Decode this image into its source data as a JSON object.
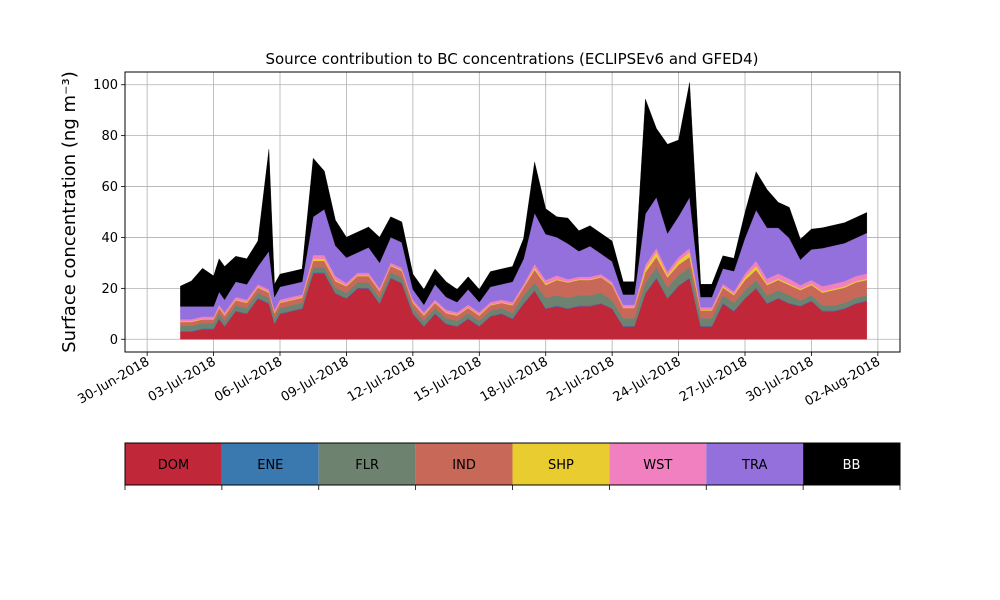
{
  "chart_data": {
    "type": "area",
    "title": "Source contribution to BC concentrations (ECLIPSEv6 and GFED4)",
    "ylabel": "Surface concentration (ng m⁻³)",
    "xlabel": "",
    "xlim": [
      "2018-06-29",
      "2018-08-03"
    ],
    "ylim": [
      -5,
      105
    ],
    "yticks": [
      0,
      20,
      40,
      60,
      80,
      100
    ],
    "grid": true,
    "stacked": true,
    "xtick_labels": [
      {
        "date": "2018-06-30",
        "label": "30-Jun-2018"
      },
      {
        "date": "2018-07-03",
        "label": "03-Jul-2018"
      },
      {
        "date": "2018-07-06",
        "label": "06-Jul-2018"
      },
      {
        "date": "2018-07-09",
        "label": "09-Jul-2018"
      },
      {
        "date": "2018-07-12",
        "label": "12-Jul-2018"
      },
      {
        "date": "2018-07-15",
        "label": "15-Jul-2018"
      },
      {
        "date": "2018-07-18",
        "label": "18-Jul-2018"
      },
      {
        "date": "2018-07-21",
        "label": "21-Jul-2018"
      },
      {
        "date": "2018-07-24",
        "label": "24-Jul-2018"
      },
      {
        "date": "2018-07-27",
        "label": "27-Jul-2018"
      },
      {
        "date": "2018-07-30",
        "label": "30-Jul-2018"
      },
      {
        "date": "2018-08-02",
        "label": "02-Aug-2018"
      }
    ],
    "x": [
      "2018-07-01 12:00",
      "2018-07-02 00:00",
      "2018-07-02 12:00",
      "2018-07-03 00:00",
      "2018-07-03 06:00",
      "2018-07-03 12:00",
      "2018-07-04 00:00",
      "2018-07-04 12:00",
      "2018-07-05 00:00",
      "2018-07-05 12:00",
      "2018-07-05 18:00",
      "2018-07-06 00:00",
      "2018-07-06 12:00",
      "2018-07-07 00:00",
      "2018-07-07 12:00",
      "2018-07-08 00:00",
      "2018-07-08 12:00",
      "2018-07-09 00:00",
      "2018-07-09 12:00",
      "2018-07-10 00:00",
      "2018-07-10 12:00",
      "2018-07-11 00:00",
      "2018-07-11 12:00",
      "2018-07-12 00:00",
      "2018-07-12 12:00",
      "2018-07-13 00:00",
      "2018-07-13 12:00",
      "2018-07-14 00:00",
      "2018-07-14 12:00",
      "2018-07-15 00:00",
      "2018-07-15 12:00",
      "2018-07-16 00:00",
      "2018-07-16 12:00",
      "2018-07-17 00:00",
      "2018-07-17 12:00",
      "2018-07-18 00:00",
      "2018-07-18 12:00",
      "2018-07-19 00:00",
      "2018-07-19 12:00",
      "2018-07-20 00:00",
      "2018-07-20 12:00",
      "2018-07-21 00:00",
      "2018-07-21 12:00",
      "2018-07-22 00:00",
      "2018-07-22 12:00",
      "2018-07-23 00:00",
      "2018-07-23 12:00",
      "2018-07-24 00:00",
      "2018-07-24 12:00",
      "2018-07-25 00:00",
      "2018-07-25 12:00",
      "2018-07-26 00:00",
      "2018-07-26 12:00",
      "2018-07-27 00:00",
      "2018-07-27 12:00",
      "2018-07-28 00:00",
      "2018-07-28 12:00",
      "2018-07-29 00:00",
      "2018-07-29 12:00",
      "2018-07-30 00:00",
      "2018-07-30 12:00",
      "2018-07-31 00:00",
      "2018-07-31 12:00",
      "2018-08-01 00:00",
      "2018-08-01 12:00"
    ],
    "series": [
      {
        "name": "DOM",
        "color": "#c0283a",
        "values": [
          3,
          3,
          4,
          4,
          8,
          5,
          11,
          10,
          16,
          14,
          6,
          10,
          11,
          12,
          26,
          26,
          18,
          16,
          20,
          20,
          14,
          24,
          22,
          10,
          5,
          10,
          6,
          5,
          8,
          5,
          9,
          10,
          8,
          14,
          19,
          12,
          13,
          12,
          13,
          13,
          14,
          12,
          5,
          5,
          18,
          24,
          16,
          21,
          24,
          5,
          5,
          14,
          11,
          16,
          20,
          14,
          16,
          14,
          13,
          15,
          11,
          11,
          12,
          14,
          15
        ]
      },
      {
        "name": "ENE",
        "color": "#3a78b0",
        "values": [
          0.3,
          0.3,
          0.3,
          0.3,
          0.3,
          0.3,
          0.3,
          0.3,
          0.3,
          0.3,
          0.3,
          0.3,
          0.3,
          0.3,
          0.3,
          0.3,
          0.3,
          0.3,
          0.3,
          0.3,
          0.3,
          0.3,
          0.3,
          0.3,
          0.3,
          0.3,
          0.3,
          0.3,
          0.3,
          0.3,
          0.3,
          0.3,
          0.3,
          0.3,
          0.3,
          0.3,
          0.3,
          0.3,
          0.3,
          0.3,
          0.3,
          0.3,
          0.3,
          0.3,
          0.3,
          0.3,
          0.3,
          0.3,
          0.3,
          0.3,
          0.3,
          0.3,
          0.3,
          0.3,
          0.3,
          0.3,
          0.3,
          0.3,
          0.3,
          0.3,
          0.3,
          0.3,
          0.3,
          0.3,
          0.3
        ]
      },
      {
        "name": "FLR",
        "color": "#6e8270",
        "values": [
          2,
          2,
          2,
          2,
          2,
          2,
          2,
          2,
          2,
          2,
          2,
          2,
          2,
          2,
          2,
          2,
          2,
          2,
          2,
          2,
          2,
          2,
          2,
          2,
          2,
          2,
          2,
          2,
          2,
          2,
          2,
          2,
          2,
          3,
          3,
          4,
          4,
          4,
          4,
          4,
          4,
          3,
          3,
          3,
          4,
          4,
          4,
          4,
          4,
          3,
          3,
          3,
          3,
          3,
          3,
          3,
          3,
          3,
          2,
          2,
          2,
          2,
          2,
          2,
          2
        ]
      },
      {
        "name": "IND",
        "color": "#c86858",
        "values": [
          1.5,
          1.5,
          1.5,
          1.5,
          2,
          2,
          2,
          2,
          2,
          2,
          2,
          2,
          2,
          2,
          2.5,
          2.5,
          2.5,
          2.5,
          2.5,
          2.5,
          2.5,
          2.5,
          2.5,
          2,
          2,
          2,
          2,
          2,
          2,
          2,
          2,
          2,
          3,
          3,
          5,
          5,
          6,
          6,
          6,
          6,
          6,
          6,
          4,
          4,
          4,
          4,
          4,
          4,
          4,
          3,
          3,
          3,
          3,
          4,
          4,
          4,
          4,
          4,
          4,
          4,
          5,
          6,
          6,
          6,
          6
        ]
      },
      {
        "name": "SHP",
        "color": "#e8cc30",
        "values": [
          0.3,
          0.3,
          0.3,
          0.3,
          0.3,
          0.3,
          0.3,
          0.3,
          0.3,
          0.3,
          0.3,
          0.3,
          0.3,
          0.3,
          0.8,
          0.8,
          0.5,
          0.3,
          0.3,
          0.3,
          0.3,
          0.3,
          0.3,
          0.3,
          0.3,
          0.3,
          0.3,
          0.3,
          0.3,
          0.3,
          0.3,
          0.3,
          0.3,
          0.3,
          0.8,
          0.5,
          0.3,
          0.3,
          0.3,
          0.3,
          0.3,
          0.3,
          0.3,
          0.3,
          1.5,
          2,
          0.8,
          1.5,
          2,
          0.3,
          0.3,
          0.5,
          0.5,
          1,
          1.5,
          0.5,
          0.5,
          0.5,
          0.5,
          0.5,
          0.5,
          0.5,
          0.5,
          0.5,
          0.5
        ]
      },
      {
        "name": "WST",
        "color": "#f080c0",
        "values": [
          0.8,
          0.8,
          0.8,
          0.8,
          1,
          1,
          1,
          1,
          1,
          1,
          1,
          1,
          1,
          1,
          1.5,
          1.5,
          1.5,
          1,
          1,
          1,
          1,
          1,
          1,
          1,
          1,
          1,
          1,
          1,
          1,
          1,
          1,
          1,
          1,
          1,
          1.5,
          1.5,
          1.5,
          1,
          1,
          1,
          1,
          1,
          1,
          1,
          1.5,
          1.5,
          1.5,
          1.5,
          1.5,
          1,
          1,
          1,
          1,
          1.5,
          2,
          2,
          2,
          2,
          1.5,
          1.5,
          2,
          2,
          2,
          2,
          2
        ]
      },
      {
        "name": "TRA",
        "color": "#9370db",
        "values": [
          5,
          5,
          4,
          4,
          5,
          5,
          6,
          6,
          7,
          15,
          5,
          5,
          5,
          5,
          15,
          18,
          12,
          10,
          8,
          10,
          10,
          10,
          10,
          4,
          3,
          6,
          5,
          4,
          6,
          4,
          6,
          6,
          8,
          10,
          20,
          18,
          15,
          14,
          10,
          12,
          8,
          8,
          4,
          4,
          20,
          20,
          15,
          16,
          20,
          4,
          4,
          6,
          8,
          14,
          20,
          20,
          18,
          16,
          10,
          12,
          15,
          15,
          15,
          15,
          16
        ]
      },
      {
        "name": "BB",
        "color": "#000000",
        "values": [
          8,
          10,
          15,
          12,
          13,
          13,
          10,
          10,
          10,
          40,
          5,
          5,
          5,
          5,
          23,
          15,
          10,
          8,
          8,
          8,
          10,
          8,
          8,
          6,
          6,
          6,
          6,
          5,
          5,
          5,
          6,
          6,
          6,
          8,
          20,
          10,
          8,
          10,
          8,
          8,
          8,
          8,
          5,
          5,
          45,
          27,
          35,
          30,
          45,
          5,
          5,
          5,
          5,
          10,
          15,
          15,
          10,
          12,
          8,
          8,
          8,
          8,
          8,
          8,
          8
        ]
      }
    ],
    "legend": {
      "placement": "bottom",
      "entries": [
        {
          "label": "DOM",
          "color": "#c0283a",
          "text_color": "#000000"
        },
        {
          "label": "ENE",
          "color": "#3a78b0",
          "text_color": "#000000"
        },
        {
          "label": "FLR",
          "color": "#6e8270",
          "text_color": "#000000"
        },
        {
          "label": "IND",
          "color": "#c86858",
          "text_color": "#000000"
        },
        {
          "label": "SHP",
          "color": "#e8cc30",
          "text_color": "#000000"
        },
        {
          "label": "WST",
          "color": "#f080c0",
          "text_color": "#000000"
        },
        {
          "label": "TRA",
          "color": "#9370db",
          "text_color": "#000000"
        },
        {
          "label": "BB",
          "color": "#000000",
          "text_color": "#ffffff"
        }
      ]
    }
  }
}
